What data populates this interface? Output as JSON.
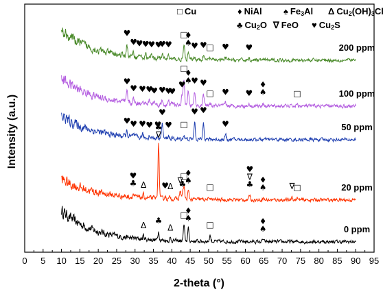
{
  "chart_data": {
    "type": "line",
    "xlabel": "2-theta (°)",
    "ylabel": "Intensity (a.u.)",
    "xlim": [
      0,
      95
    ],
    "xticks": [
      "0",
      "5",
      "10",
      "15",
      "20",
      "25",
      "30",
      "35",
      "40",
      "45",
      "50",
      "55",
      "60",
      "65",
      "70",
      "75",
      "80",
      "85",
      "90",
      "95"
    ],
    "grid": false,
    "legend": {
      "position": "top",
      "entries": [
        {
          "symbol": "□",
          "label": "Cu",
          "sub": "",
          "suffix": ""
        },
        {
          "symbol": "♦",
          "label": "NiAl",
          "sub": "",
          "suffix": ""
        },
        {
          "symbol": "♠",
          "label": "Fe",
          "sub": "3",
          "suffix": "Al"
        },
        {
          "symbol": "Δ",
          "label": "Cu",
          "sub": "2",
          "suffix": "(OH)",
          "sub2": "3",
          "suffix2": "Cl"
        },
        {
          "symbol": "♣",
          "label": "Cu",
          "sub": "2",
          "suffix": "O"
        },
        {
          "symbol": "∇",
          "label": "FeO",
          "sub": "",
          "suffix": ""
        },
        {
          "symbol": "♥",
          "label": "Cu",
          "sub": "2",
          "suffix": "S"
        }
      ]
    },
    "series": [
      {
        "name": "0 ppm",
        "color": "#000000",
        "start": 0.78,
        "end": 0.02,
        "decay": 9,
        "peaks": [
          {
            "x": 32.3,
            "h": 0.08,
            "m": "Δ"
          },
          {
            "x": 36.4,
            "h": 0.22,
            "m": "♣"
          },
          {
            "x": 39.6,
            "h": 0.06,
            "m": "Δ"
          },
          {
            "x": 43.3,
            "h": 0.38,
            "m": "□"
          },
          {
            "x": 44.5,
            "h": 0.3,
            "m": "♦♠"
          },
          {
            "x": 50.4,
            "h": 0.15,
            "m": "□"
          },
          {
            "x": 64.8,
            "h": 0.06,
            "m": "♦♠"
          }
        ]
      },
      {
        "name": "20 ppm",
        "color": "#ff3300",
        "start": 0.52,
        "end": 0.02,
        "decay": 10,
        "peaks": [
          {
            "x": 29.5,
            "h": 0.08,
            "m": "♥♣"
          },
          {
            "x": 32.3,
            "h": 0.06,
            "m": "Δ"
          },
          {
            "x": 36.4,
            "h": 1.3,
            "m": "♣∇"
          },
          {
            "x": 38.2,
            "h": 0.06,
            "m": "♥"
          },
          {
            "x": 39.6,
            "h": 0.05,
            "m": "Δ"
          },
          {
            "x": 42.3,
            "h": 0.2,
            "m": "∇"
          },
          {
            "x": 42.9,
            "h": 0.12,
            "m": "♣"
          },
          {
            "x": 43.3,
            "h": 0.32,
            "m": "□"
          },
          {
            "x": 44.5,
            "h": 0.2,
            "m": "♦♠"
          },
          {
            "x": 50.4,
            "h": 0.05,
            "m": "□"
          },
          {
            "x": 61.2,
            "h": 0.12,
            "m": "♥∇♣"
          },
          {
            "x": 64.8,
            "h": 0.05,
            "m": "♦♠"
          },
          {
            "x": 72.7,
            "h": 0.08,
            "m": "∇"
          },
          {
            "x": 74.1,
            "h": 0.05,
            "m": "□"
          }
        ]
      },
      {
        "name": "50 ppm",
        "color": "#1f3fb0",
        "start": 0.6,
        "end": 0.02,
        "decay": 9,
        "peaks": [
          {
            "x": 27.8,
            "h": 0.12,
            "m": "♥"
          },
          {
            "x": 29.6,
            "h": 0.06,
            "m": "♥"
          },
          {
            "x": 32.0,
            "h": 0.08,
            "m": "♥"
          },
          {
            "x": 33.9,
            "h": 0.06,
            "m": "♥"
          },
          {
            "x": 36.2,
            "h": 0.08,
            "m": "♥"
          },
          {
            "x": 37.4,
            "h": 0.38,
            "m": "♥"
          },
          {
            "x": 39.1,
            "h": 0.08,
            "m": "♥"
          },
          {
            "x": 43.3,
            "h": 0.1,
            "m": "□"
          },
          {
            "x": 46.2,
            "h": 0.42,
            "m": "♥"
          },
          {
            "x": 48.6,
            "h": 0.45,
            "m": "♥"
          },
          {
            "x": 54.6,
            "h": 0.12,
            "m": "♥"
          }
        ]
      },
      {
        "name": "100 ppm",
        "color": "#b45ee0",
        "start": 0.7,
        "end": 0.02,
        "decay": 9,
        "peaks": [
          {
            "x": 27.8,
            "h": 0.25,
            "m": "♥"
          },
          {
            "x": 29.6,
            "h": 0.1,
            "m": "♥"
          },
          {
            "x": 32.0,
            "h": 0.1,
            "m": "♥"
          },
          {
            "x": 33.9,
            "h": 0.1,
            "m": "♥"
          },
          {
            "x": 35.2,
            "h": 0.08,
            "m": "♥"
          },
          {
            "x": 37.4,
            "h": 0.1,
            "m": "♥"
          },
          {
            "x": 39.1,
            "h": 0.08,
            "m": "♥"
          },
          {
            "x": 40.1,
            "h": 0.08,
            "m": "♥"
          },
          {
            "x": 42.8,
            "h": 0.25,
            "m": "♥"
          },
          {
            "x": 43.3,
            "h": 0.65,
            "m": "□"
          },
          {
            "x": 44.5,
            "h": 0.35,
            "m": "♦♠"
          },
          {
            "x": 46.2,
            "h": 0.35,
            "m": "♥"
          },
          {
            "x": 48.6,
            "h": 0.3,
            "m": "♥"
          },
          {
            "x": 50.4,
            "h": 0.05,
            "m": "□"
          },
          {
            "x": 54.6,
            "h": 0.08,
            "m": "♥"
          },
          {
            "x": 61.0,
            "h": 0.06,
            "m": "♥"
          },
          {
            "x": 64.8,
            "h": 0.08,
            "m": "♦♠"
          },
          {
            "x": 74.1,
            "h": 0.05,
            "m": "□"
          }
        ]
      },
      {
        "name": "200 ppm",
        "color": "#4a8a2a",
        "start": 0.75,
        "end": 0.02,
        "decay": 9,
        "peaks": [
          {
            "x": 27.8,
            "h": 0.3,
            "m": "♥"
          },
          {
            "x": 29.6,
            "h": 0.1,
            "m": "♥"
          },
          {
            "x": 31.2,
            "h": 0.08,
            "m": "♥"
          },
          {
            "x": 32.9,
            "h": 0.08,
            "m": "♥"
          },
          {
            "x": 34.5,
            "h": 0.08,
            "m": "♥"
          },
          {
            "x": 36.4,
            "h": 0.08,
            "m": "♥"
          },
          {
            "x": 37.4,
            "h": 0.1,
            "m": "♥"
          },
          {
            "x": 39.1,
            "h": 0.1,
            "m": "♥"
          },
          {
            "x": 43.3,
            "h": 0.35,
            "m": "□"
          },
          {
            "x": 44.5,
            "h": 0.15,
            "m": "♦♠"
          },
          {
            "x": 46.2,
            "h": 0.08,
            "m": "♥"
          },
          {
            "x": 48.6,
            "h": 0.1,
            "m": "♥"
          },
          {
            "x": 50.4,
            "h": 0.05,
            "m": "□"
          },
          {
            "x": 54.6,
            "h": 0.06,
            "m": "♥"
          },
          {
            "x": 61.0,
            "h": 0.05,
            "m": "♥"
          }
        ]
      }
    ]
  }
}
